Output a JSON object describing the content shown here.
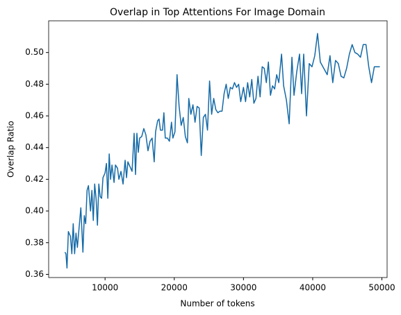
{
  "chart_data": {
    "type": "line",
    "title": "Overlap in Top Attentions For Image Domain",
    "xlabel": "Number of tokens",
    "ylabel": "Overlap Ratio",
    "color": "#1469a6",
    "xlim": [
      1850,
      50750
    ],
    "ylim": [
      0.358,
      0.52
    ],
    "xticks": [
      10000,
      20000,
      30000,
      40000,
      50000
    ],
    "yticks": [
      0.36,
      0.38,
      {
        "value": 0.4,
        "label": "0.40"
      },
      0.42,
      0.44,
      0.46,
      0.48,
      {
        "value": 0.5,
        "label": "0.50"
      }
    ],
    "x": [
      4200,
      4350,
      4500,
      4700,
      5000,
      5200,
      5400,
      5600,
      5800,
      6000,
      6300,
      6500,
      6800,
      7000,
      7200,
      7400,
      7600,
      7900,
      8100,
      8300,
      8500,
      8700,
      8900,
      9100,
      9300,
      9500,
      9700,
      10000,
      10200,
      10400,
      10600,
      10800,
      11000,
      11300,
      11500,
      11800,
      12000,
      12300,
      12600,
      12900,
      13100,
      13300,
      13600,
      13900,
      14200,
      14400,
      14600,
      14800,
      15000,
      15300,
      15600,
      15900,
      16200,
      16500,
      16800,
      17100,
      17300,
      17600,
      17800,
      18000,
      18300,
      18500,
      18700,
      19000,
      19300,
      19600,
      19800,
      20100,
      20400,
      20700,
      21000,
      21300,
      21600,
      21900,
      22100,
      22400,
      22700,
      23000,
      23300,
      23600,
      23900,
      24200,
      24500,
      24800,
      25100,
      25400,
      25700,
      26000,
      26300,
      26600,
      26900,
      27200,
      27500,
      27800,
      28100,
      28400,
      28700,
      29000,
      29300,
      29600,
      30000,
      30300,
      30600,
      30900,
      31200,
      31500,
      31800,
      32100,
      32400,
      32700,
      33000,
      33300,
      33600,
      33900,
      34200,
      34500,
      34800,
      35100,
      35500,
      35800,
      36200,
      36600,
      37000,
      37300,
      37700,
      38100,
      38400,
      38700,
      39100,
      39500,
      39900,
      40300,
      40700,
      41100,
      41600,
      42100,
      42500,
      42900,
      43300,
      43700,
      44100,
      44500,
      44900,
      45300,
      45700,
      46100,
      46500,
      46900,
      47300,
      47700,
      48100,
      48500,
      48900,
      49300,
      49700
    ],
    "values": [
      0.374,
      0.373,
      0.364,
      0.387,
      0.384,
      0.373,
      0.392,
      0.373,
      0.386,
      0.377,
      0.392,
      0.402,
      0.374,
      0.397,
      0.392,
      0.413,
      0.416,
      0.4,
      0.413,
      0.394,
      0.417,
      0.408,
      0.391,
      0.417,
      0.409,
      0.408,
      0.421,
      0.424,
      0.43,
      0.408,
      0.436,
      0.42,
      0.429,
      0.418,
      0.429,
      0.427,
      0.42,
      0.425,
      0.417,
      0.432,
      0.421,
      0.431,
      0.428,
      0.425,
      0.449,
      0.423,
      0.449,
      0.437,
      0.446,
      0.447,
      0.452,
      0.448,
      0.438,
      0.444,
      0.446,
      0.431,
      0.45,
      0.457,
      0.458,
      0.451,
      0.451,
      0.462,
      0.446,
      0.446,
      0.444,
      0.456,
      0.446,
      0.45,
      0.486,
      0.466,
      0.454,
      0.459,
      0.447,
      0.443,
      0.471,
      0.461,
      0.467,
      0.456,
      0.466,
      0.465,
      0.435,
      0.459,
      0.461,
      0.451,
      0.482,
      0.461,
      0.471,
      0.464,
      0.462,
      0.463,
      0.463,
      0.474,
      0.48,
      0.471,
      0.478,
      0.477,
      0.481,
      0.478,
      0.48,
      0.469,
      0.478,
      0.469,
      0.481,
      0.472,
      0.483,
      0.468,
      0.471,
      0.485,
      0.472,
      0.491,
      0.49,
      0.481,
      0.494,
      0.473,
      0.479,
      0.477,
      0.486,
      0.481,
      0.499,
      0.479,
      0.47,
      0.455,
      0.497,
      0.473,
      0.488,
      0.499,
      0.474,
      0.499,
      0.46,
      0.493,
      0.491,
      0.498,
      0.512,
      0.494,
      0.49,
      0.486,
      0.498,
      0.481,
      0.495,
      0.493,
      0.485,
      0.484,
      0.49,
      0.499,
      0.505,
      0.5,
      0.499,
      0.497,
      0.505,
      0.505,
      0.491,
      0.481,
      0.491,
      0.491,
      0.491
    ]
  }
}
